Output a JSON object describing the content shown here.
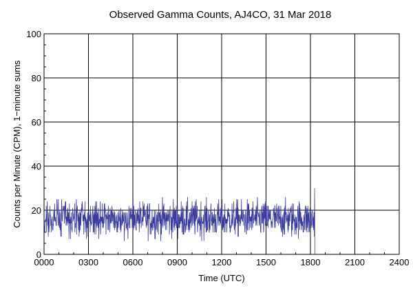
{
  "chart_data": {
    "type": "line",
    "title": "Observed Gamma Counts, AJ4CO, 31 Mar 2018",
    "xlabel": "Time (UTC)",
    "ylabel": "Counts per Minute (CPM), 1−minute sums",
    "xlim": [
      0,
      2400
    ],
    "ylim": [
      0,
      100
    ],
    "x_ticks": [
      "0000",
      "0300",
      "0600",
      "0900",
      "1200",
      "1500",
      "1800",
      "2100",
      "2400"
    ],
    "y_ticks": [
      "0",
      "20",
      "40",
      "60",
      "80",
      "100"
    ],
    "grid": true,
    "series": [
      {
        "name": "Gamma counts",
        "color": "#3b3b9e",
        "x_start_min": 0,
        "x_end_min": 1096,
        "mean_cpm": 16,
        "min_cpm": 6,
        "max_cpm": 30,
        "note": "1-minute sums from 0000 to ~1816 UTC, then data ends"
      }
    ]
  }
}
